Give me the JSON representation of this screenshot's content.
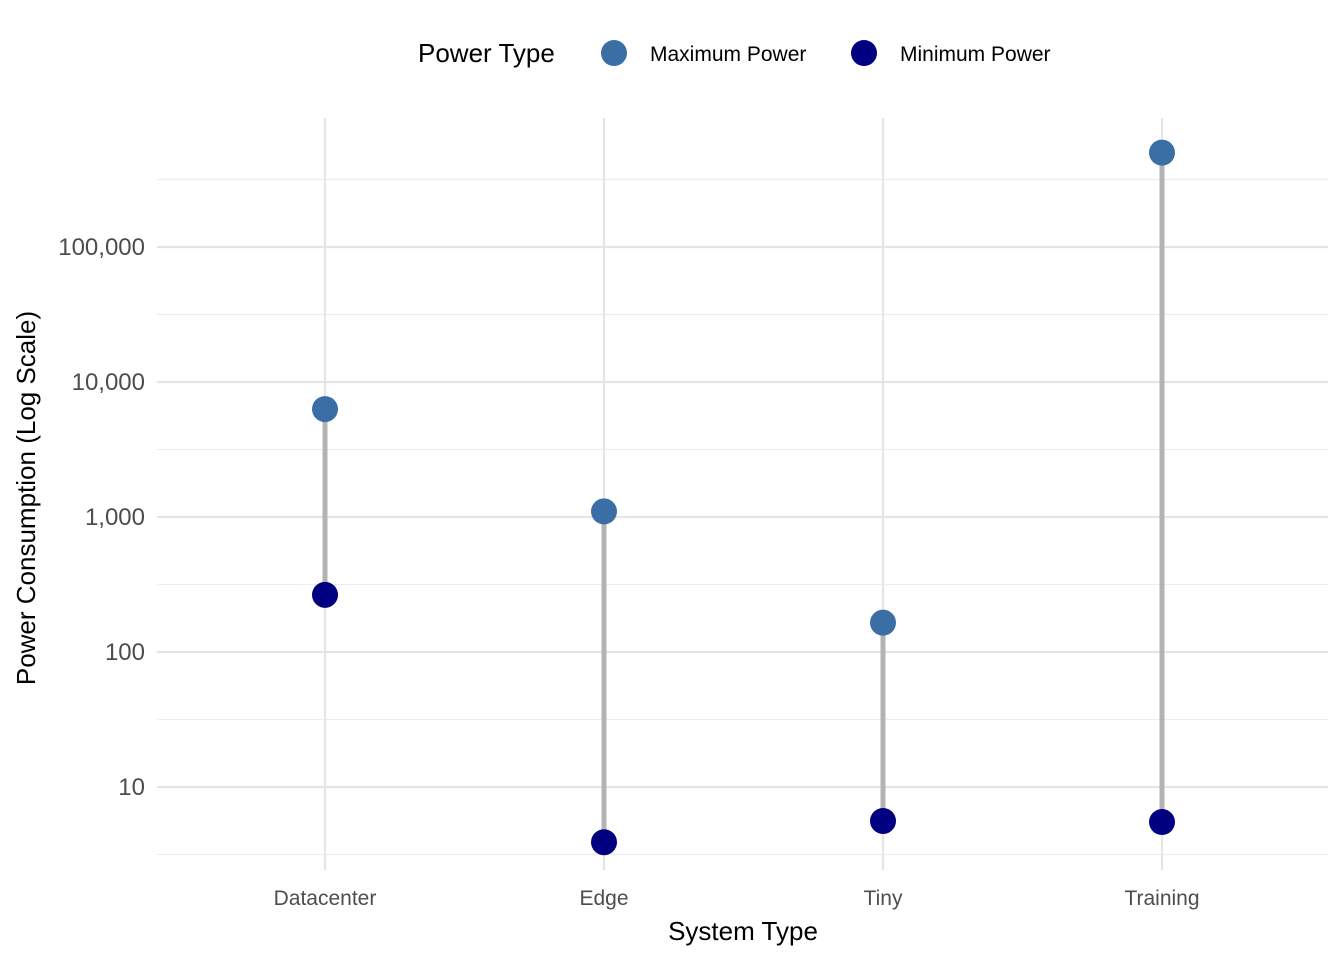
{
  "chart_data": {
    "type": "scatter",
    "subtype": "dumbbell",
    "xlabel": "System Type",
    "ylabel": "Power Consumption (Log Scale)",
    "categories": [
      "Datacenter",
      "Edge",
      "Tiny",
      "Training"
    ],
    "y_scale": "log10",
    "ylim": [
      2.9,
      900000
    ],
    "y_ticks": [
      10,
      100,
      1000,
      10000,
      100000
    ],
    "y_tick_labels": [
      "10",
      "100",
      "1,000",
      "10,000",
      "100,000"
    ],
    "grid": true,
    "legend": {
      "title": "Power Type",
      "position": "top",
      "entries": [
        {
          "label": "Maximum Power",
          "color": "#3a6ea5"
        },
        {
          "label": "Minimum Power",
          "color": "#000080"
        }
      ]
    },
    "series": [
      {
        "name": "Maximum Power",
        "color": "#3a6ea5",
        "values": [
          6300,
          1100,
          165,
          500000
        ]
      },
      {
        "name": "Minimum Power",
        "color": "#000080",
        "values": [
          265,
          3.9,
          5.6,
          5.5
        ]
      }
    ],
    "segment_color": "#b3b3b3"
  }
}
